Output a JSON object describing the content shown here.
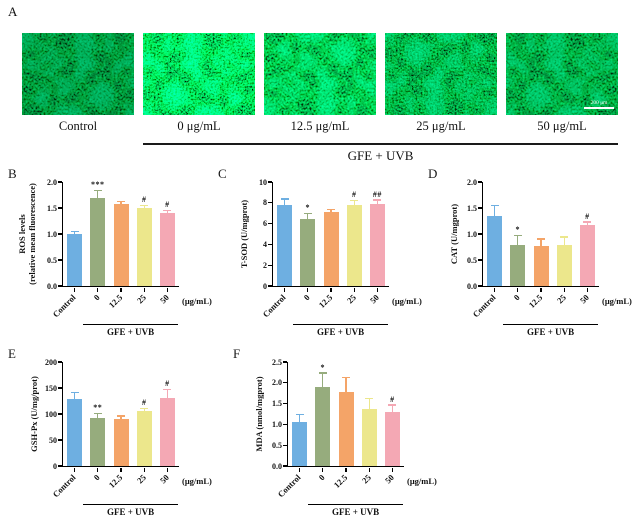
{
  "figure": {
    "background_color": "#ffffff",
    "panel_a": {
      "letter": "A",
      "images": [
        {
          "label": "Control",
          "relative_brightness": 0.8
        },
        {
          "label": "0 μg/mL",
          "relative_brightness": 1.2
        },
        {
          "label": "12.5 μg/mL",
          "relative_brightness": 1.05
        },
        {
          "label": "25 μg/mL",
          "relative_brightness": 0.95
        },
        {
          "label": "50 μg/mL",
          "relative_brightness": 0.9
        }
      ],
      "group_label": "GFE + UVB",
      "scale_bar_label": "200 μm"
    },
    "bar_colors": [
      "#6EAFE1",
      "#96AC7D",
      "#F4A468",
      "#ECE78C",
      "#F4A8B4"
    ],
    "axis_color": "#000000",
    "categories": [
      "Control",
      "0",
      "12.5",
      "25",
      "50"
    ],
    "x_unit_label": "(μg/mL)",
    "group_bracket_label": "GFE + UVB"
  },
  "chart_data": [
    {
      "panel": "B",
      "type": "bar",
      "grid": false,
      "legend": false,
      "ylabel_lines": [
        "ROS levels",
        "(relative mean fluorescence)"
      ],
      "ylim": [
        0,
        2.0
      ],
      "ytick_labels": [
        "0.0",
        "0.5",
        "1.0",
        "1.5",
        "2.0"
      ],
      "categories": [
        "Control",
        "0",
        "12.5",
        "25",
        "50"
      ],
      "values": [
        1.0,
        1.7,
        1.58,
        1.5,
        1.4
      ],
      "errors": [
        0.03,
        0.12,
        0.03,
        0.03,
        0.04
      ],
      "significance": [
        "",
        "***",
        "",
        "#",
        "#"
      ],
      "x_unit": "(μg/mL)",
      "group_label": "GFE + UVB"
    },
    {
      "panel": "C",
      "type": "bar",
      "grid": false,
      "legend": false,
      "ylabel_lines": [
        "T-SOD (U/mgprot)"
      ],
      "ylim": [
        0,
        10
      ],
      "ytick_labels": [
        "0",
        "2",
        "4",
        "6",
        "8",
        "10"
      ],
      "categories": [
        "Control",
        "0",
        "12.5",
        "25",
        "50"
      ],
      "values": [
        7.8,
        6.45,
        7.15,
        7.75,
        7.85
      ],
      "errors": [
        0.5,
        0.45,
        0.15,
        0.4,
        0.35
      ],
      "significance": [
        "",
        "*",
        "",
        "#",
        "##"
      ],
      "x_unit": "(μg/mL)",
      "group_label": "GFE + UVB"
    },
    {
      "panel": "D",
      "type": "bar",
      "grid": false,
      "legend": false,
      "ylabel_lines": [
        "CAT (U/mgprot)"
      ],
      "ylim": [
        0,
        2.0
      ],
      "ytick_labels": [
        "0.0",
        "0.5",
        "1.0",
        "1.5",
        "2.0"
      ],
      "categories": [
        "Control",
        "0",
        "12.5",
        "25",
        "50"
      ],
      "values": [
        1.35,
        0.78,
        0.76,
        0.79,
        1.18
      ],
      "errors": [
        0.19,
        0.18,
        0.13,
        0.14,
        0.04
      ],
      "significance": [
        "",
        "*",
        "",
        "",
        "#"
      ],
      "x_unit": "(μg/mL)",
      "group_label": "GFE + UVB"
    },
    {
      "panel": "E",
      "type": "bar",
      "grid": false,
      "legend": false,
      "ylabel_lines": [
        "GSH-Px (U/mg/prot)"
      ],
      "ylim": [
        0,
        200
      ],
      "ytick_labels": [
        "0",
        "50",
        "100",
        "150",
        "200"
      ],
      "categories": [
        "Control",
        "0",
        "12.5",
        "25",
        "50"
      ],
      "values": [
        129,
        93,
        91,
        106,
        131
      ],
      "errors": [
        11,
        7,
        4,
        4,
        15
      ],
      "significance": [
        "",
        "**",
        "",
        "#",
        "#"
      ],
      "x_unit": "(μg/mL)",
      "group_label": "GFE + UVB"
    },
    {
      "panel": "F",
      "type": "bar",
      "grid": false,
      "legend": false,
      "ylabel_lines": [
        "MDA (nmol/mgprot)"
      ],
      "ylim": [
        0,
        2.5
      ],
      "ytick_labels": [
        "0.0",
        "0.5",
        "1.0",
        "1.5",
        "2.0",
        "2.5"
      ],
      "categories": [
        "Control",
        "0",
        "12.5",
        "25",
        "50"
      ],
      "values": [
        1.07,
        1.9,
        1.78,
        1.37,
        1.3
      ],
      "errors": [
        0.15,
        0.32,
        0.33,
        0.23,
        0.15
      ],
      "significance": [
        "",
        "*",
        "",
        "",
        "#"
      ],
      "x_unit": "(μg/mL)",
      "group_label": "GFE + UVB"
    }
  ]
}
